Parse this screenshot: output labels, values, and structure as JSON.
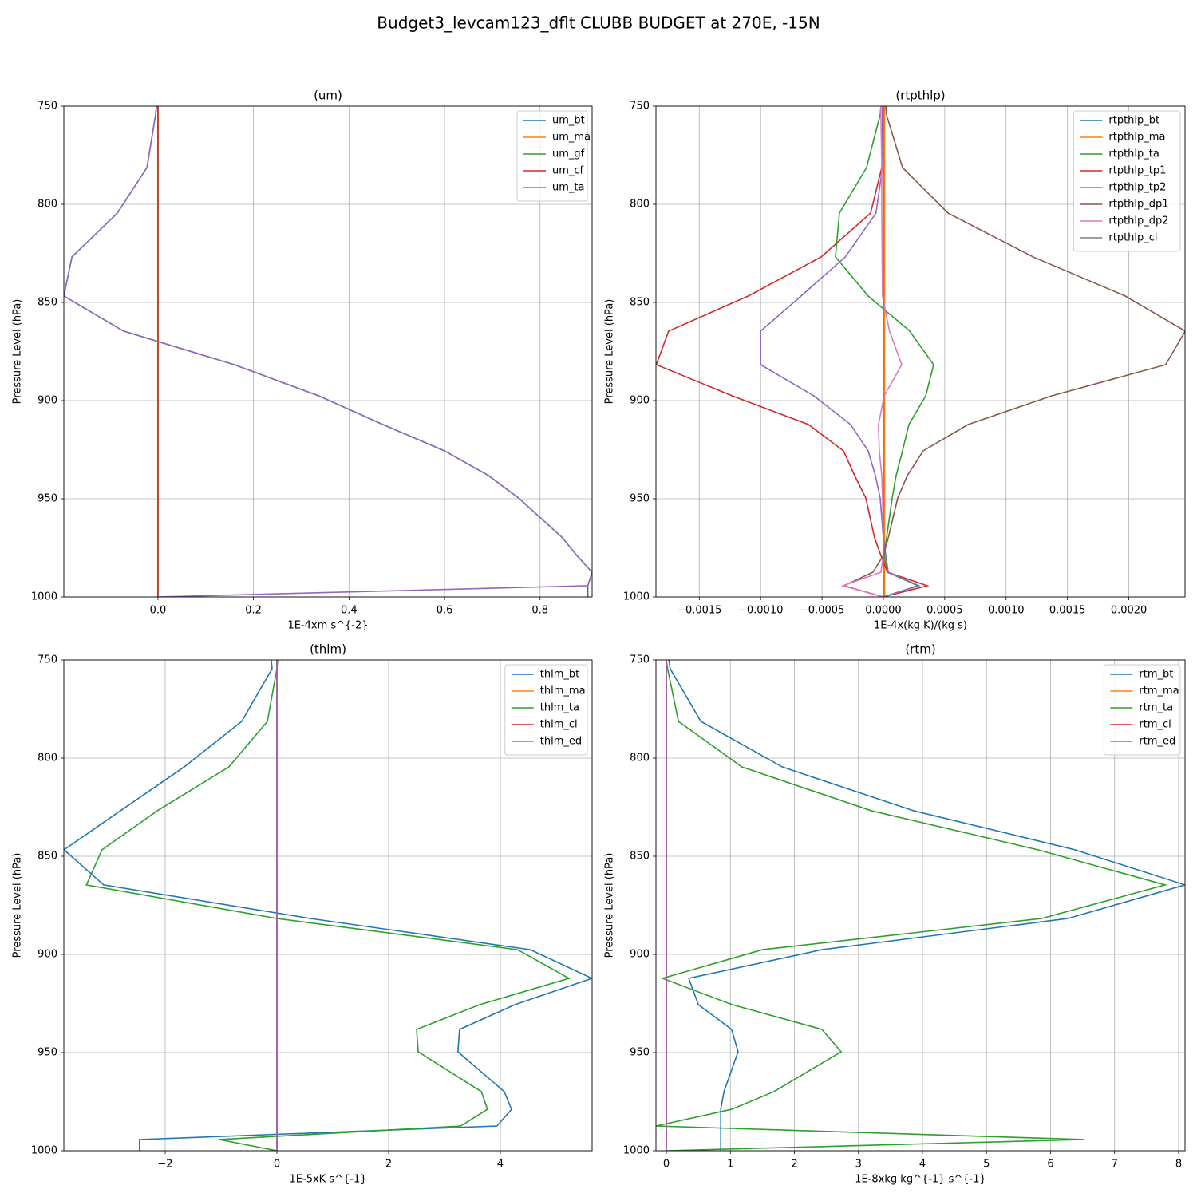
{
  "title": "Budget3_levcam123_dflt CLUBB BUDGET at 270E, -15N",
  "chart_data": [
    {
      "type": "line",
      "title": "(um)",
      "xlabel": "1E-4xm s^{-2}",
      "ylabel": "Pressure Level (hPa)",
      "y": [
        750,
        754.5,
        781.3,
        804.5,
        826.8,
        846.7,
        864.6,
        881.7,
        897.6,
        912.2,
        925.6,
        938.2,
        949.6,
        969.9,
        978.9,
        987.4,
        994.3,
        1000
      ],
      "xlim": [
        -0.197,
        0.909
      ],
      "ylim": [
        1000,
        750
      ],
      "xticks": [
        {
          "value": 0,
          "label": "0.0"
        },
        0.2,
        0.4,
        0.6,
        0.8
      ],
      "yticks": [
        750,
        800,
        850,
        900,
        950,
        1000
      ],
      "grid": true,
      "legend": "upper right",
      "series": [
        {
          "name": "um_bt",
          "color": "#1f77b4",
          "values": [
            -0.003,
            -0.005,
            -0.023,
            -0.085,
            -0.18,
            -0.197,
            -0.072,
            0.16,
            0.337,
            0.471,
            0.6,
            0.692,
            0.755,
            0.847,
            0.877,
            0.909,
            0.9,
            0.9
          ]
        },
        {
          "name": "um_ma",
          "color": "#ff7f0e",
          "values": [
            0,
            0,
            0,
            0,
            0,
            0,
            0,
            0,
            0,
            0,
            0,
            0,
            0,
            0,
            0,
            0,
            0,
            0
          ]
        },
        {
          "name": "um_gf",
          "color": "#2ca02c",
          "values": [
            0,
            0,
            0,
            0,
            0,
            0,
            0,
            0,
            0,
            0,
            0,
            0,
            0,
            0,
            0,
            0,
            0,
            0
          ]
        },
        {
          "name": "um_cf",
          "color": "#d62728",
          "values": [
            0,
            0,
            0,
            0,
            0,
            0,
            0,
            0,
            0,
            0,
            0,
            0,
            0,
            0,
            0,
            0,
            0,
            0
          ]
        },
        {
          "name": "um_ta",
          "color": "#9467bd",
          "values": [
            -0.003,
            -0.005,
            -0.023,
            -0.085,
            -0.18,
            -0.197,
            -0.072,
            0.16,
            0.337,
            0.471,
            0.6,
            0.692,
            0.755,
            0.847,
            0.877,
            0.909,
            0.9,
            0
          ]
        }
      ]
    },
    {
      "type": "line",
      "title": "(rtpthlp)",
      "xlabel": "1E-4x(kg K)/(kg s)",
      "ylabel": "Pressure Level (hPa)",
      "y": [
        750,
        754.5,
        781.3,
        804.5,
        826.8,
        846.7,
        864.6,
        881.7,
        897.6,
        912.2,
        925.6,
        938.2,
        949.6,
        969.9,
        978.9,
        987.4,
        994.3,
        1000
      ],
      "xlim": [
        -0.001853,
        0.002458
      ],
      "ylim": [
        1000,
        750
      ],
      "xticks": [
        {
          "value": -0.0015,
          "label": "−0.0015"
        },
        {
          "value": -0.001,
          "label": "−0.0010"
        },
        {
          "value": -0.0005,
          "label": "−0.0005"
        },
        {
          "value": 0,
          "label": "0.0000"
        },
        {
          "value": 0.0005,
          "label": "0.0005"
        },
        {
          "value": 0.001,
          "label": "0.0010"
        },
        {
          "value": 0.0015,
          "label": "0.0015"
        },
        {
          "value": 0.002,
          "label": "0.0020"
        }
      ],
      "yticks": [
        750,
        800,
        850,
        900,
        950,
        1000
      ],
      "grid": true,
      "legend": "upper right",
      "series": [
        {
          "name": "rtpthlp_bt",
          "color": "#1f77b4",
          "values": [
            0,
            0,
            0,
            0,
            0,
            0,
            0,
            0,
            0,
            0,
            0,
            0,
            0,
            0,
            0,
            0,
            0,
            0
          ]
        },
        {
          "name": "rtpthlp_ma",
          "color": "#ff7f0e",
          "values": [
            1e-05,
            1e-05,
            1e-05,
            1e-05,
            1e-05,
            1e-05,
            1e-05,
            1e-05,
            1e-05,
            1e-05,
            1e-05,
            1e-05,
            1e-05,
            1e-05,
            1e-05,
            1e-05,
            1e-05,
            1e-05
          ]
        },
        {
          "name": "rtpthlp_ta",
          "color": "#2ca02c",
          "values": [
            -2e-05,
            -2.6e-05,
            -0.000137,
            -0.000358,
            -0.00039,
            -0.000124,
            0.000215,
            0.00041,
            0.000345,
            0.000208,
            0.000156,
            0.000104,
            7.2e-05,
            2.6e-05,
            7e-06,
            3.3e-05,
            0.00028,
            0
          ]
        },
        {
          "name": "rtpthlp_tp1",
          "color": "#d62728",
          "values": [
            -7e-06,
            -7e-06,
            -1.3e-05,
            -0.000104,
            -0.000507,
            -0.0011,
            -0.00175,
            -0.00185,
            -0.00123,
            -0.00061,
            -0.000325,
            -0.000234,
            -0.000143,
            -7.2e-05,
            -2e-05,
            3.3e-05,
            0.000358,
            0
          ]
        },
        {
          "name": "rtpthlp_tp2",
          "color": "#9467bd",
          "values": [
            -7e-06,
            -7e-06,
            -7e-06,
            -6e-05,
            -0.00031,
            -0.00067,
            -0.001,
            -0.001,
            -0.000566,
            -0.000267,
            -0.000124,
            -6.5e-05,
            -2.6e-05,
            0,
            2e-05,
            4e-05,
            0.00029,
            0
          ]
        },
        {
          "name": "rtpthlp_dp1",
          "color": "#8c564b",
          "values": [
            2e-05,
            2.6e-05,
            0.000156,
            0.000527,
            0.00122,
            0.00197,
            0.00246,
            0.0023,
            0.00137,
            0.00069,
            0.000325,
            0.000195,
            0.000117,
            4e-05,
            0,
            -8.5e-05,
            -0.00032,
            0
          ]
        },
        {
          "name": "rtpthlp_dp2",
          "color": "#e377c2",
          "values": [
            -2e-05,
            -2e-05,
            -1.3e-05,
            -1.3e-05,
            -1e-05,
            -7e-06,
            5e-05,
            0.00015,
            7e-06,
            -4e-05,
            -3.3e-05,
            -1.3e-05,
            -7e-06,
            0,
            0,
            -2e-05,
            -0.00033,
            0
          ]
        },
        {
          "name": "rtpthlp_cl",
          "color": "#7f7f7f",
          "values": [
            0,
            0,
            0,
            0,
            0,
            0,
            0,
            0,
            0,
            0,
            0,
            0,
            0,
            0,
            0,
            0,
            0,
            0
          ]
        }
      ]
    },
    {
      "type": "line",
      "title": "(thlm)",
      "xlabel": "1E-5xK s^{-1}",
      "ylabel": "Pressure Level (hPa)",
      "y": [
        750,
        754.5,
        781.3,
        804.5,
        826.8,
        846.7,
        864.6,
        881.7,
        897.6,
        912.2,
        925.6,
        938.2,
        949.6,
        969.9,
        978.9,
        987.4,
        994.3,
        1000
      ],
      "xlim": [
        -3.814,
        5.643
      ],
      "ylim": [
        1000,
        750
      ],
      "xticks": [
        {
          "value": -2,
          "label": "−2"
        },
        0,
        2,
        4
      ],
      "yticks": [
        750,
        800,
        850,
        900,
        950,
        1000
      ],
      "grid": true,
      "legend": "upper right",
      "series": [
        {
          "name": "thlm_bt",
          "color": "#1f77b4",
          "values": [
            -0.1,
            -0.086,
            -0.63,
            -1.66,
            -2.8,
            -3.81,
            -3.1,
            0.6,
            4.54,
            5.64,
            4.26,
            3.27,
            3.24,
            4.07,
            4.2,
            3.94,
            -2.46,
            -2.46
          ]
        },
        {
          "name": "thlm_ma",
          "color": "#ff7f0e",
          "values": [
            0,
            0,
            0,
            0,
            0,
            0,
            0,
            0,
            0,
            0,
            0,
            0,
            0,
            0,
            0,
            0,
            0,
            0
          ]
        },
        {
          "name": "thlm_ta",
          "color": "#2ca02c",
          "values": [
            0.014,
            0,
            -0.17,
            -0.86,
            -2.14,
            -3.13,
            -3.41,
            0,
            4.31,
            5.23,
            3.63,
            2.5,
            2.53,
            3.66,
            3.77,
            3.29,
            -1.03,
            0
          ]
        },
        {
          "name": "thlm_cl",
          "color": "#d62728",
          "values": [
            0,
            0,
            0,
            0,
            0,
            0,
            0,
            0,
            0,
            0,
            0,
            0,
            0,
            0,
            0,
            0,
            0,
            0
          ]
        },
        {
          "name": "thlm_ed",
          "color": "#9467bd",
          "values": [
            0,
            0,
            0,
            0,
            0,
            0,
            0,
            0,
            0,
            0,
            0,
            0,
            0,
            0,
            0,
            0,
            0,
            0
          ]
        }
      ]
    },
    {
      "type": "line",
      "title": "(rtm)",
      "xlabel": "1E-8xkg kg^{-1} s^{-1}",
      "ylabel": "Pressure Level (hPa)",
      "y": [
        750,
        754.5,
        781.3,
        804.5,
        826.8,
        846.7,
        864.6,
        881.7,
        897.6,
        912.2,
        925.6,
        938.2,
        949.6,
        969.9,
        978.9,
        987.4,
        994.3,
        1000
      ],
      "xlim": [
        -0.162,
        8.1
      ],
      "ylim": [
        1000,
        750
      ],
      "xticks": [
        0,
        1,
        2,
        3,
        4,
        5,
        6,
        7,
        8
      ],
      "yticks": [
        750,
        800,
        850,
        900,
        950,
        1000
      ],
      "grid": true,
      "legend": "upper right",
      "series": [
        {
          "name": "rtm_bt",
          "color": "#1f77b4",
          "values": [
            0.04,
            0.06,
            0.54,
            1.81,
            3.86,
            6.38,
            8.1,
            6.27,
            2.43,
            0.35,
            0.5,
            1.02,
            1.12,
            0.9,
            0.85,
            0.85,
            0.85,
            0.85
          ]
        },
        {
          "name": "rtm_ma",
          "color": "#ff7f0e",
          "values": [
            0,
            0,
            0,
            0,
            0,
            0,
            0,
            0,
            0,
            0,
            0,
            0,
            0,
            0,
            0,
            0,
            0,
            0
          ]
        },
        {
          "name": "rtm_ta",
          "color": "#2ca02c",
          "values": [
            0,
            0.02,
            0.19,
            1.18,
            3.2,
            5.8,
            7.79,
            5.86,
            1.5,
            -0.06,
            1.03,
            2.43,
            2.73,
            1.68,
            1.02,
            -0.16,
            6.52,
            0
          ]
        },
        {
          "name": "rtm_cl",
          "color": "#d62728",
          "values": [
            0,
            0,
            0,
            0,
            0,
            0,
            0,
            0,
            0,
            0,
            0,
            0,
            0,
            0,
            0,
            0,
            0,
            0
          ]
        },
        {
          "name": "rtm_ed",
          "color": "#9467bd",
          "values": [
            0,
            0,
            0,
            0,
            0,
            0,
            0,
            0,
            0,
            0,
            0,
            0,
            0,
            0,
            0,
            0,
            0,
            0
          ]
        }
      ]
    }
  ]
}
